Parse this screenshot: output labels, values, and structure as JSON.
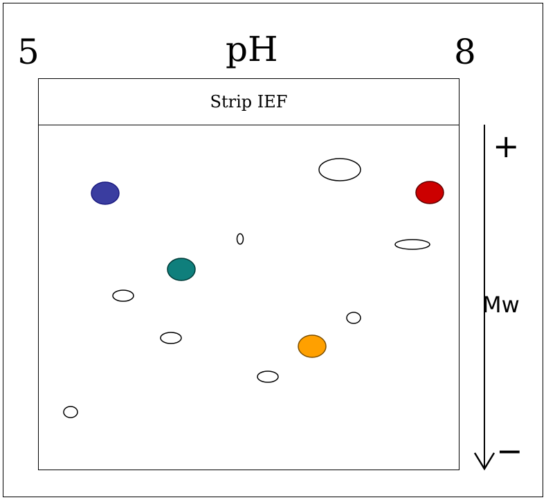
{
  "ph_axis": {
    "min_label": "5",
    "title": "pH",
    "max_label": "8"
  },
  "strip_label": "Strip IEF",
  "mw_axis": {
    "top_sign": "+",
    "title": "Mw",
    "bottom_sign": "−"
  },
  "spots": [
    {
      "name": "spot-blue",
      "color": "#3A3DA0"
    },
    {
      "name": "spot-red",
      "color": "#CC0000"
    },
    {
      "name": "spot-teal",
      "color": "#0F7F7C"
    },
    {
      "name": "spot-orange",
      "color": "#FFA000"
    },
    {
      "name": "spot-unlabeled",
      "color": "#FFFFFF"
    }
  ]
}
